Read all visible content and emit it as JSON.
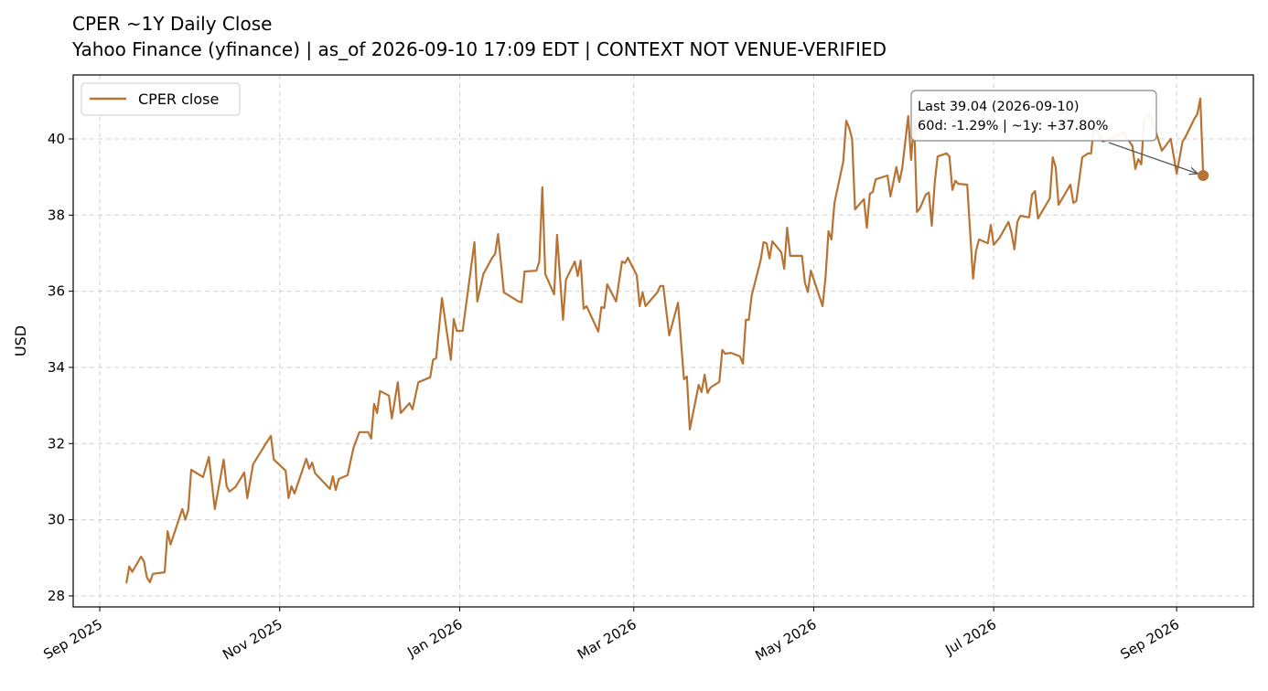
{
  "chart_data": {
    "type": "line",
    "title": "CPER ~1Y Daily Close",
    "subtitle": "Yahoo Finance (yfinance) | as_of 2026-09-10 17:09 EDT | CONTEXT NOT VENUE-VERIFIED",
    "y_label": "USD",
    "legend": "upper left",
    "grid": true,
    "annotation": [
      "Last 39.04 (2026-09-10)",
      "60d: -1.29% | ~1y: +37.80%"
    ],
    "xlim": [
      "2025-08-23",
      "2026-09-27"
    ],
    "xticks": [
      {
        "value": "2025-09-01",
        "label": "Sep 2025"
      },
      {
        "value": "2025-11-01",
        "label": "Nov 2025"
      },
      {
        "value": "2026-01-01",
        "label": "Jan 2026"
      },
      {
        "value": "2026-03-01",
        "label": "Mar 2026"
      },
      {
        "value": "2026-05-01",
        "label": "May 2026"
      },
      {
        "value": "2026-07-01",
        "label": "Jul 2026"
      },
      {
        "value": "2026-09-01",
        "label": "Sep 2026"
      }
    ],
    "ylim": [
      27.71,
      41.68
    ],
    "yticks": [
      28,
      30,
      32,
      34,
      36,
      38,
      40
    ],
    "x": [
      "2025-09-10",
      "2025-09-11",
      "2025-09-12",
      "2025-09-15",
      "2025-09-16",
      "2025-09-17",
      "2025-09-18",
      "2025-09-19",
      "2025-09-23",
      "2025-09-24",
      "2025-09-25",
      "2025-09-29",
      "2025-09-30",
      "2025-10-01",
      "2025-10-02",
      "2025-10-06",
      "2025-10-08",
      "2025-10-10",
      "2025-10-13",
      "2025-10-14",
      "2025-10-15",
      "2025-10-17",
      "2025-10-20",
      "2025-10-21",
      "2025-10-23",
      "2025-10-27",
      "2025-10-29",
      "2025-10-30",
      "2025-11-03",
      "2025-11-04",
      "2025-11-05",
      "2025-11-06",
      "2025-11-10",
      "2025-11-11",
      "2025-11-12",
      "2025-11-13",
      "2025-11-18",
      "2025-11-19",
      "2025-11-20",
      "2025-11-21",
      "2025-11-24",
      "2025-11-26",
      "2025-11-28",
      "2025-12-01",
      "2025-12-02",
      "2025-12-03",
      "2025-12-04",
      "2025-12-05",
      "2025-12-08",
      "2025-12-09",
      "2025-12-11",
      "2025-12-12",
      "2025-12-15",
      "2025-12-16",
      "2025-12-17",
      "2025-12-18",
      "2025-12-22",
      "2025-12-23",
      "2025-12-24",
      "2025-12-26",
      "2025-12-29",
      "2025-12-30",
      "2025-12-31",
      "2026-01-02",
      "2026-01-06",
      "2026-01-07",
      "2026-01-09",
      "2026-01-12",
      "2026-01-13",
      "2026-01-14",
      "2026-01-16",
      "2026-01-21",
      "2026-01-22",
      "2026-01-23",
      "2026-01-27",
      "2026-01-28",
      "2026-01-29",
      "2026-01-30",
      "2026-02-02",
      "2026-02-03",
      "2026-02-05",
      "2026-02-06",
      "2026-02-09",
      "2026-02-10",
      "2026-02-11",
      "2026-02-12",
      "2026-02-13",
      "2026-02-17",
      "2026-02-18",
      "2026-02-19",
      "2026-02-20",
      "2026-02-23",
      "2026-02-25",
      "2026-02-26",
      "2026-02-27",
      "2026-03-02",
      "2026-03-03",
      "2026-03-04",
      "2026-03-05",
      "2026-03-09",
      "2026-03-10",
      "2026-03-11",
      "2026-03-13",
      "2026-03-16",
      "2026-03-18",
      "2026-03-19",
      "2026-03-20",
      "2026-03-23",
      "2026-03-24",
      "2026-03-25",
      "2026-03-26",
      "2026-03-27",
      "2026-03-30",
      "2026-03-31",
      "2026-04-01",
      "2026-04-03",
      "2026-04-06",
      "2026-04-07",
      "2026-04-08",
      "2026-04-09",
      "2026-04-10",
      "2026-04-13",
      "2026-04-14",
      "2026-04-15",
      "2026-04-16",
      "2026-04-17",
      "2026-04-20",
      "2026-04-21",
      "2026-04-22",
      "2026-04-23",
      "2026-04-27",
      "2026-04-28",
      "2026-04-29",
      "2026-04-30",
      "2026-05-04",
      "2026-05-05",
      "2026-05-06",
      "2026-05-07",
      "2026-05-08",
      "2026-05-11",
      "2026-05-12",
      "2026-05-13",
      "2026-05-14",
      "2026-05-15",
      "2026-05-18",
      "2026-05-19",
      "2026-05-20",
      "2026-05-21",
      "2026-05-22",
      "2026-05-26",
      "2026-05-27",
      "2026-05-29",
      "2026-05-30",
      "2026-05-31",
      "2026-06-02",
      "2026-06-03",
      "2026-06-04",
      "2026-06-05",
      "2026-06-06",
      "2026-06-08",
      "2026-06-09",
      "2026-06-10",
      "2026-06-11",
      "2026-06-12",
      "2026-06-15",
      "2026-06-16",
      "2026-06-17",
      "2026-06-18",
      "2026-06-19",
      "2026-06-22",
      "2026-06-24",
      "2026-06-25",
      "2026-06-26",
      "2026-06-29",
      "2026-06-30",
      "2026-07-01",
      "2026-07-03",
      "2026-07-06",
      "2026-07-07",
      "2026-07-08",
      "2026-07-09",
      "2026-07-10",
      "2026-07-13",
      "2026-07-14",
      "2026-07-15",
      "2026-07-16",
      "2026-07-20",
      "2026-07-21",
      "2026-07-22",
      "2026-07-23",
      "2026-07-27",
      "2026-07-28",
      "2026-07-29",
      "2026-07-31",
      "2026-08-02",
      "2026-08-03",
      "2026-08-04",
      "2026-08-07",
      "2026-08-11",
      "2026-08-14",
      "2026-08-17",
      "2026-08-18",
      "2026-08-19",
      "2026-08-20",
      "2026-08-21",
      "2026-08-23",
      "2026-08-25",
      "2026-08-27",
      "2026-08-30",
      "2026-09-01",
      "2026-09-03",
      "2026-09-04",
      "2026-09-07",
      "2026-09-08",
      "2026-09-09",
      "2026-09-10"
    ],
    "series": [
      {
        "name": "CPER close",
        "color": "#b87333",
        "values": [
          28.33,
          28.77,
          28.63,
          29.03,
          28.9,
          28.48,
          28.36,
          28.58,
          28.62,
          29.7,
          29.35,
          30.28,
          30.0,
          30.26,
          31.31,
          31.12,
          31.65,
          30.28,
          31.58,
          30.88,
          30.74,
          30.86,
          31.24,
          30.57,
          31.46,
          31.96,
          32.2,
          31.58,
          31.29,
          30.57,
          30.88,
          30.69,
          31.6,
          31.34,
          31.5,
          31.22,
          30.81,
          31.14,
          30.78,
          31.07,
          31.17,
          31.89,
          32.3,
          32.3,
          32.13,
          33.04,
          32.8,
          33.38,
          33.26,
          32.66,
          33.61,
          32.8,
          33.06,
          32.9,
          33.26,
          33.61,
          33.74,
          34.2,
          34.24,
          35.82,
          34.2,
          35.27,
          34.96,
          34.96,
          37.29,
          35.73,
          36.45,
          36.88,
          36.98,
          37.5,
          35.97,
          35.73,
          35.71,
          36.52,
          36.54,
          36.78,
          38.73,
          36.45,
          35.92,
          37.48,
          35.25,
          36.3,
          36.78,
          36.4,
          36.81,
          35.54,
          35.61,
          34.94,
          35.58,
          35.56,
          36.18,
          35.73,
          36.78,
          36.74,
          36.88,
          36.42,
          35.61,
          35.97,
          35.61,
          35.97,
          36.14,
          36.14,
          34.84,
          35.7,
          33.69,
          33.76,
          32.37,
          33.54,
          33.35,
          33.81,
          33.33,
          33.47,
          33.62,
          34.46,
          34.36,
          34.38,
          34.29,
          34.1,
          35.25,
          35.25,
          35.9,
          36.81,
          37.29,
          37.26,
          36.86,
          37.31,
          37.02,
          36.59,
          37.67,
          36.93,
          36.93,
          36.23,
          35.98,
          36.54,
          35.61,
          36.38,
          37.58,
          37.36,
          38.32,
          39.4,
          40.48,
          40.29,
          40.0,
          38.15,
          38.42,
          37.67,
          38.56,
          38.61,
          38.94,
          39.04,
          38.49,
          39.26,
          38.87,
          39.23,
          40.6,
          39.45,
          40.48,
          38.08,
          38.18,
          38.54,
          38.59,
          37.72,
          38.85,
          39.54,
          39.62,
          39.54,
          38.66,
          38.9,
          38.82,
          38.8,
          36.33,
          37.05,
          37.36,
          37.26,
          37.74,
          37.22,
          37.41,
          37.82,
          37.55,
          37.1,
          37.82,
          37.98,
          37.94,
          38.54,
          38.63,
          37.91,
          38.44,
          39.52,
          39.26,
          38.27,
          38.8,
          38.32,
          38.37,
          39.52,
          39.62,
          39.62,
          40.34,
          39.93,
          40.05,
          40.17,
          39.81,
          39.21,
          39.47,
          39.33,
          40.53,
          40.65,
          40.17,
          39.69,
          40.0,
          39.09,
          39.93,
          40.05,
          40.53,
          40.65,
          41.06,
          39.04
        ]
      }
    ]
  }
}
